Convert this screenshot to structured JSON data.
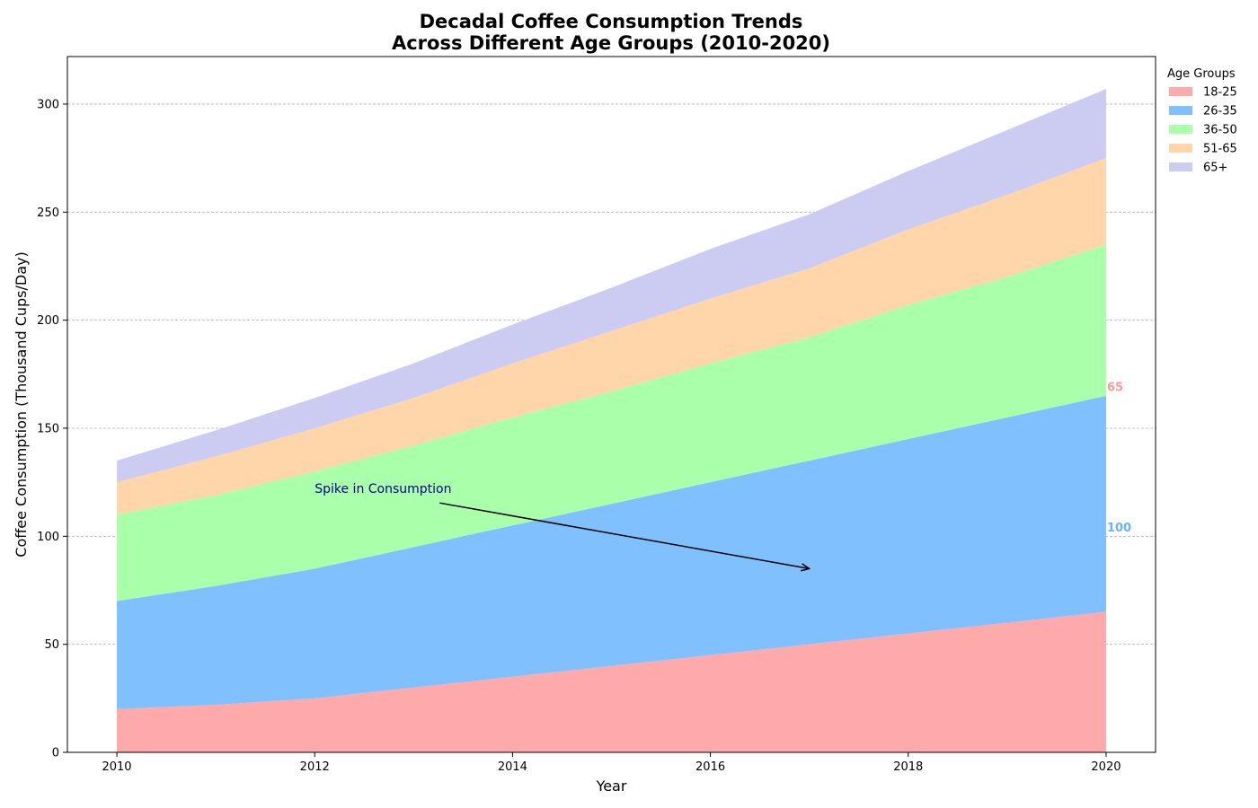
{
  "chart_data": {
    "type": "area",
    "stacked": true,
    "title": "Decadal Coffee Consumption Trends\nAcross Different Age Groups (2010-2020)",
    "xlabel": "Year",
    "ylabel": "Coffee Consumption (Thousand Cups/Day)",
    "x": [
      2010,
      2011,
      2012,
      2013,
      2014,
      2015,
      2016,
      2017,
      2018,
      2019,
      2020
    ],
    "xlim": [
      2009.5,
      2020.5
    ],
    "ylim": [
      0,
      322
    ],
    "xticks": [
      2010,
      2012,
      2014,
      2016,
      2018,
      2020
    ],
    "yticks": [
      0,
      50,
      100,
      150,
      200,
      250,
      300
    ],
    "grid": "y-dashed",
    "legend": {
      "title": "Age Groups",
      "position": "outside-top-right"
    },
    "series": [
      {
        "name": "18-25",
        "color": "#ffaaaa",
        "values": [
          20,
          22,
          25,
          30,
          35,
          40,
          45,
          50,
          55,
          60,
          65
        ]
      },
      {
        "name": "26-35",
        "color": "#80c0ff",
        "values": [
          50,
          55,
          60,
          65,
          70,
          75,
          80,
          85,
          90,
          95,
          100
        ]
      },
      {
        "name": "36-50",
        "color": "#aaffaa",
        "values": [
          40,
          42,
          45,
          47,
          50,
          52,
          55,
          57,
          62,
          65,
          70
        ]
      },
      {
        "name": "51-65",
        "color": "#ffd5aa",
        "values": [
          15,
          18,
          20,
          22,
          25,
          28,
          30,
          32,
          35,
          38,
          40
        ]
      },
      {
        "name": "65+",
        "color": "#ccccf2",
        "values": [
          10,
          12,
          14,
          16,
          18,
          20,
          23,
          25,
          27,
          30,
          32
        ]
      }
    ],
    "annotations": [
      {
        "text": "Spike in Consumption",
        "text_x": 2012,
        "text_y": 120,
        "arrow_to_x": 2017,
        "arrow_to_y": 85,
        "color": "#00008b"
      }
    ],
    "end_labels": [
      {
        "text": "65",
        "x": 2020,
        "y": 169,
        "color": "#ff9999"
      },
      {
        "text": "100",
        "x": 2020,
        "y": 104,
        "color": "#66b3ff"
      }
    ]
  }
}
